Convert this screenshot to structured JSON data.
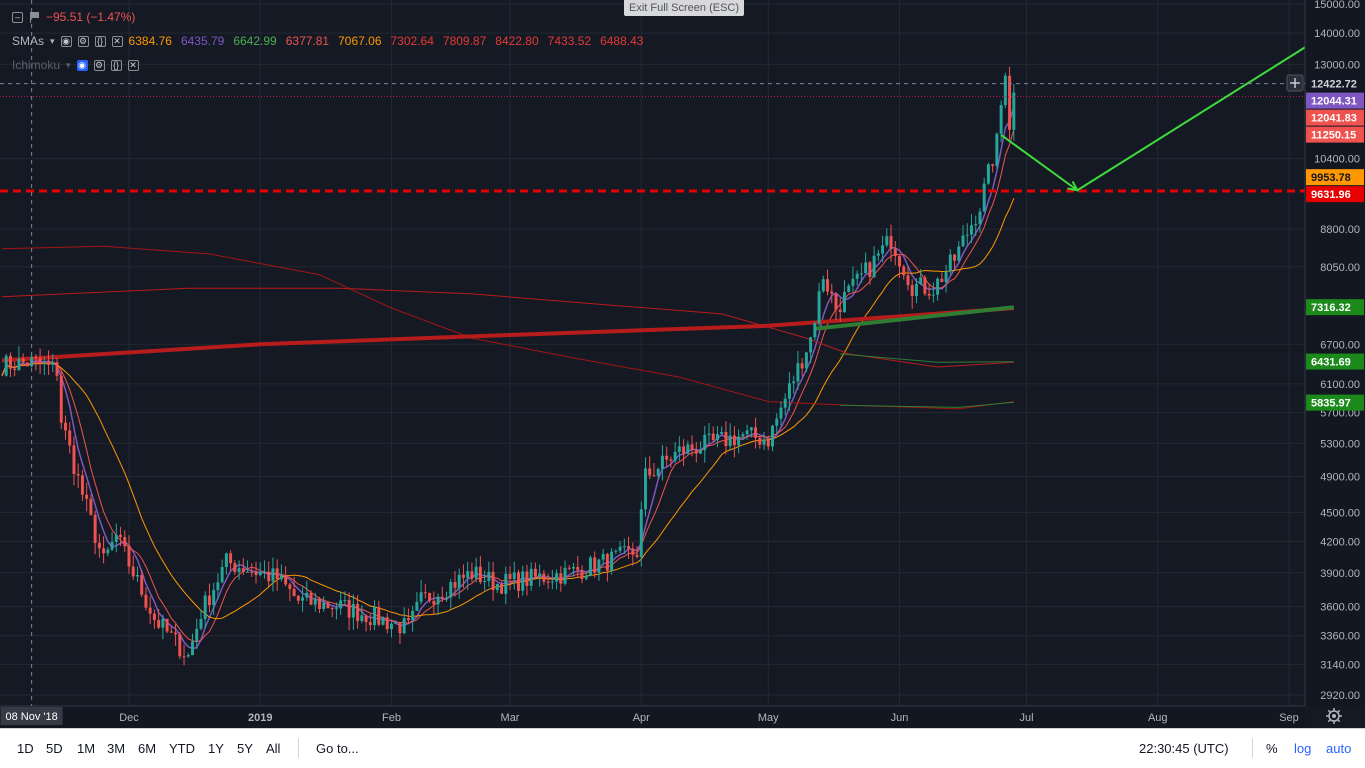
{
  "header": {
    "change": "−95.51 (−1.47%)",
    "fullscreen_label": "Exit Full Screen (ESC)"
  },
  "indicators": {
    "sma": {
      "name": "SMAs",
      "values": [
        {
          "text": "6384.76",
          "color": "#ff9800"
        },
        {
          "text": "6435.79",
          "color": "#7e57c2"
        },
        {
          "text": "6642.99",
          "color": "#4caf50"
        },
        {
          "text": "6377.81",
          "color": "#ef5350"
        },
        {
          "text": "7067.06",
          "color": "#ff9800"
        },
        {
          "text": "7302.64",
          "color": "#e53935"
        },
        {
          "text": "7809.87",
          "color": "#e53935"
        },
        {
          "text": "8422.80",
          "color": "#e53935"
        },
        {
          "text": "7433.52",
          "color": "#e53935"
        },
        {
          "text": "6488.43",
          "color": "#e53935"
        }
      ]
    },
    "ichimoku": {
      "name": "Ichimoku"
    }
  },
  "price_tags": [
    {
      "text": "12422.72",
      "value": 12422.72,
      "bg": "#131722",
      "fg": "#d1d4dc"
    },
    {
      "text": "12044.31",
      "value": 12044.31,
      "bg": "#7e57c2",
      "fg": "#ffffff"
    },
    {
      "text": "12041.83",
      "value": 12041.83,
      "bg": "#ef5350",
      "fg": "#ffffff"
    },
    {
      "text": "11250.15",
      "value": 11250.15,
      "bg": "#ef5350",
      "fg": "#ffffff"
    },
    {
      "text": "9953.78",
      "value": 9953.78,
      "bg": "#ff9800",
      "fg": "#131722"
    },
    {
      "text": "9631.96",
      "value": 9631.96,
      "bg": "#e60000",
      "fg": "#ffffff"
    },
    {
      "text": "7316.32",
      "value": 7316.32,
      "bg": "#1b8a1b",
      "fg": "#ffffff"
    },
    {
      "text": "6431.69",
      "value": 6431.69,
      "bg": "#1b8a1b",
      "fg": "#ffffff"
    },
    {
      "text": "5835.97",
      "value": 5835.97,
      "bg": "#1b8a1b",
      "fg": "#ffffff"
    }
  ],
  "chart_data": {
    "type": "candlestick",
    "y_scale": "log",
    "ylim": [
      2800,
      15400
    ],
    "y_ticks": [
      2920,
      3140,
      3360,
      3600,
      3900,
      4200,
      4500,
      4900,
      5300,
      5700,
      6100,
      6700,
      8050,
      8800,
      10400,
      13000,
      14000,
      15000
    ],
    "y_tick_labels": [
      "2920.00",
      "3140.00",
      "3360.00",
      "3600.00",
      "3900.00",
      "4200.00",
      "4500.00",
      "4900.00",
      "5300.00",
      "5700.00",
      "6100.00",
      "6700.00",
      "8050.00",
      "8800.00",
      "10400.00",
      "13000.00",
      "14000.00",
      "15000.00"
    ],
    "x_labels": [
      "Dec",
      "2019",
      "Feb",
      "Mar",
      "Apr",
      "May",
      "Jun",
      "Jul",
      "Aug",
      "Sep"
    ],
    "x_label_dates": [
      "2018-12-01",
      "2019-01-01",
      "2019-02-01",
      "2019-03-01",
      "2019-04-01",
      "2019-05-01",
      "2019-06-01",
      "2019-07-01",
      "2019-08-01",
      "2019-09-01"
    ],
    "crosshair": {
      "date_label": "08 Nov '18",
      "price_label": "12422.72",
      "price": 12422.72,
      "date": "2018-11-08"
    },
    "horizontal_line": {
      "price": 9631.96,
      "color": "#e60000",
      "style": "dashed"
    },
    "hline_thin": {
      "price": 12044.31,
      "color": "#c2185b",
      "style": "dotted"
    },
    "projection_arrows": [
      {
        "from": {
          "date": "2019-06-25",
          "price": 11000
        },
        "to": {
          "date": "2019-07-13",
          "price": 9650
        },
        "color": "#3cdc3c"
      },
      {
        "from": {
          "date": "2019-07-13",
          "price": 9650
        },
        "to": {
          "date": "2019-09-09",
          "price": 13900
        },
        "color": "#3cdc3c"
      }
    ],
    "anchors": [
      {
        "date": "2018-11-01",
        "price": 6380
      },
      {
        "date": "2018-11-08",
        "price": 6420
      },
      {
        "date": "2018-11-14",
        "price": 6300
      },
      {
        "date": "2018-11-15",
        "price": 5600
      },
      {
        "date": "2018-11-20",
        "price": 4700
      },
      {
        "date": "2018-11-25",
        "price": 4000
      },
      {
        "date": "2018-11-28",
        "price": 4250
      },
      {
        "date": "2018-12-07",
        "price": 3500
      },
      {
        "date": "2018-12-15",
        "price": 3200
      },
      {
        "date": "2018-12-18",
        "price": 3550
      },
      {
        "date": "2018-12-24",
        "price": 4000
      },
      {
        "date": "2019-01-05",
        "price": 3850
      },
      {
        "date": "2019-01-10",
        "price": 3650
      },
      {
        "date": "2019-01-20",
        "price": 3600
      },
      {
        "date": "2019-02-05",
        "price": 3420
      },
      {
        "date": "2019-02-08",
        "price": 3650
      },
      {
        "date": "2019-02-20",
        "price": 3900
      },
      {
        "date": "2019-02-26",
        "price": 3800
      },
      {
        "date": "2019-03-15",
        "price": 3900
      },
      {
        "date": "2019-03-31",
        "price": 4100
      },
      {
        "date": "2019-04-02",
        "price": 4900
      },
      {
        "date": "2019-04-10",
        "price": 5200
      },
      {
        "date": "2019-04-25",
        "price": 5400
      },
      {
        "date": "2019-05-01",
        "price": 5350
      },
      {
        "date": "2019-05-11",
        "price": 6800
      },
      {
        "date": "2019-05-14",
        "price": 7900
      },
      {
        "date": "2019-05-17",
        "price": 7300
      },
      {
        "date": "2019-05-25",
        "price": 8050
      },
      {
        "date": "2019-05-30",
        "price": 8600
      },
      {
        "date": "2019-06-04",
        "price": 7700
      },
      {
        "date": "2019-06-09",
        "price": 7650
      },
      {
        "date": "2019-06-14",
        "price": 8200
      },
      {
        "date": "2019-06-20",
        "price": 9300
      },
      {
        "date": "2019-06-24",
        "price": 10800
      },
      {
        "date": "2019-06-26",
        "price": 12900
      },
      {
        "date": "2019-06-27",
        "price": 11300
      },
      {
        "date": "2019-06-28",
        "price": 12100
      }
    ]
  },
  "bottom": {
    "ranges": [
      "1D",
      "5D",
      "1M",
      "3M",
      "6M",
      "YTD",
      "1Y",
      "5Y",
      "All"
    ],
    "goto": "Go to...",
    "time": "22:30:45 (UTC)",
    "percent": "%",
    "log": "log",
    "auto": "auto"
  }
}
